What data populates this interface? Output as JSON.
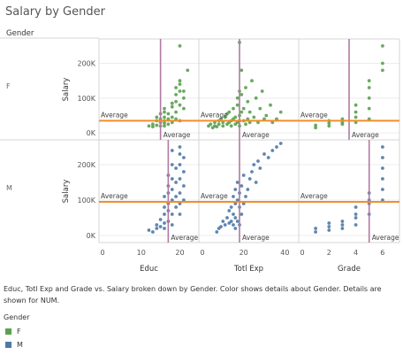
{
  "chart_title": "Salary by Gender",
  "row_header": "Gender",
  "caption": "Educ, Totl Exp and Grade vs. Salary broken down by Gender.  Color shows details about Gender.  Details are shown for NUM.",
  "legend": {
    "title": "Gender",
    "items": [
      {
        "label": "F",
        "color": "#59a14f"
      },
      {
        "label": "M",
        "color": "#4e79a7"
      }
    ]
  },
  "chart_data": {
    "type": "scatter",
    "title": "Salary by Gender",
    "rows": [
      "F",
      "M"
    ],
    "columns": [
      {
        "name": "Educ",
        "xlim": [
          0,
          24
        ],
        "ticks": [
          0,
          10,
          20
        ]
      },
      {
        "name": "Totl Exp",
        "xlim": [
          0,
          45
        ],
        "ticks": [
          0,
          20,
          40
        ]
      },
      {
        "name": "Grade",
        "xlim": [
          0,
          7
        ],
        "ticks": [
          0,
          2,
          4,
          6
        ]
      }
    ],
    "ylabel": "Salary",
    "yticks_label": [
      "0K",
      "100K",
      "200K"
    ],
    "yticks": [
      0,
      100000,
      200000
    ],
    "ylim": [
      -20000,
      270000
    ],
    "reference_line_label": "Average",
    "reference_lines": {
      "salary": {
        "F": 35000,
        "M": 95000
      },
      "Educ": {
        "F": 15.0,
        "M": 17.0
      },
      "Totl Exp": {
        "F": 18.0,
        "M": 18.0
      },
      "Grade": {
        "F": 3.5,
        "M": 5.0
      }
    },
    "colors": {
      "F": "#59a14f",
      "M": "#4e79a7",
      "avg_salary": "#f28e2b",
      "avg_x": "#b07aa1"
    },
    "series": [
      {
        "name": "F",
        "row": "F",
        "points": {
          "Educ": [
            [
              12,
              20000
            ],
            [
              13,
              18000
            ],
            [
              13,
              25000
            ],
            [
              14,
              22000
            ],
            [
              14,
              35000
            ],
            [
              14,
              45000
            ],
            [
              15,
              20000
            ],
            [
              15,
              30000
            ],
            [
              15,
              40000
            ],
            [
              15,
              55000
            ],
            [
              16,
              20000
            ],
            [
              16,
              28000
            ],
            [
              16,
              35000
            ],
            [
              16,
              45000
            ],
            [
              16,
              60000
            ],
            [
              16,
              70000
            ],
            [
              17,
              25000
            ],
            [
              17,
              40000
            ],
            [
              17,
              55000
            ],
            [
              18,
              30000
            ],
            [
              18,
              45000
            ],
            [
              18,
              75000
            ],
            [
              18,
              85000
            ],
            [
              19,
              40000
            ],
            [
              19,
              60000
            ],
            [
              19,
              90000
            ],
            [
              19,
              110000
            ],
            [
              19,
              130000
            ],
            [
              20,
              35000
            ],
            [
              20,
              80000
            ],
            [
              20,
              120000
            ],
            [
              20,
              140000
            ],
            [
              20,
              150000
            ],
            [
              20,
              250000
            ],
            [
              21,
              70000
            ],
            [
              21,
              100000
            ],
            [
              21,
              120000
            ],
            [
              22,
              180000
            ]
          ],
          "Totl Exp": [
            [
              3,
              20000
            ],
            [
              4,
              25000
            ],
            [
              5,
              15000
            ],
            [
              6,
              30000
            ],
            [
              6,
              20000
            ],
            [
              7,
              18000
            ],
            [
              8,
              35000
            ],
            [
              8,
              25000
            ],
            [
              9,
              40000
            ],
            [
              10,
              20000
            ],
            [
              10,
              30000
            ],
            [
              11,
              45000
            ],
            [
              12,
              25000
            ],
            [
              12,
              55000
            ],
            [
              13,
              30000
            ],
            [
              13,
              60000
            ],
            [
              14,
              20000
            ],
            [
              14,
              35000
            ],
            [
              15,
              40000
            ],
            [
              15,
              70000
            ],
            [
              16,
              25000
            ],
            [
              16,
              45000
            ],
            [
              17,
              30000
            ],
            [
              17,
              80000
            ],
            [
              17,
              100000
            ],
            [
              18,
              20000
            ],
            [
              18,
              35000
            ],
            [
              18,
              50000
            ],
            [
              18,
              120000
            ],
            [
              18,
              260000
            ],
            [
              19,
              60000
            ],
            [
              19,
              110000
            ],
            [
              19,
              180000
            ],
            [
              20,
              35000
            ],
            [
              20,
              70000
            ],
            [
              21,
              25000
            ],
            [
              21,
              130000
            ],
            [
              22,
              40000
            ],
            [
              22,
              90000
            ],
            [
              23,
              30000
            ],
            [
              23,
              60000
            ],
            [
              24,
              150000
            ],
            [
              25,
              45000
            ],
            [
              26,
              100000
            ],
            [
              27,
              30000
            ],
            [
              28,
              70000
            ],
            [
              29,
              120000
            ],
            [
              30,
              40000
            ],
            [
              31,
              50000
            ],
            [
              33,
              80000
            ],
            [
              34,
              30000
            ],
            [
              36,
              40000
            ],
            [
              38,
              60000
            ]
          ],
          "Grade": [
            [
              1,
              15000
            ],
            [
              1,
              22000
            ],
            [
              2,
              20000
            ],
            [
              2,
              28000
            ],
            [
              2,
              35000
            ],
            [
              3,
              25000
            ],
            [
              3,
              30000
            ],
            [
              3,
              40000
            ],
            [
              4,
              30000
            ],
            [
              4,
              45000
            ],
            [
              4,
              60000
            ],
            [
              4,
              80000
            ],
            [
              5,
              40000
            ],
            [
              5,
              70000
            ],
            [
              5,
              100000
            ],
            [
              5,
              130000
            ],
            [
              5,
              150000
            ],
            [
              6,
              180000
            ],
            [
              6,
              200000
            ],
            [
              6,
              250000
            ]
          ]
        }
      },
      {
        "name": "M",
        "row": "M",
        "points": {
          "Educ": [
            [
              12,
              15000
            ],
            [
              13,
              10000
            ],
            [
              14,
              20000
            ],
            [
              14,
              30000
            ],
            [
              15,
              25000
            ],
            [
              15,
              45000
            ],
            [
              16,
              20000
            ],
            [
              16,
              35000
            ],
            [
              16,
              60000
            ],
            [
              16,
              80000
            ],
            [
              16,
              110000
            ],
            [
              17,
              40000
            ],
            [
              17,
              70000
            ],
            [
              17,
              90000
            ],
            [
              17,
              120000
            ],
            [
              17,
              140000
            ],
            [
              17,
              170000
            ],
            [
              18,
              30000
            ],
            [
              18,
              60000
            ],
            [
              18,
              100000
            ],
            [
              18,
              130000
            ],
            [
              18,
              160000
            ],
            [
              18,
              200000
            ],
            [
              18,
              240000
            ],
            [
              19,
              80000
            ],
            [
              19,
              110000
            ],
            [
              19,
              150000
            ],
            [
              19,
              190000
            ],
            [
              20,
              60000
            ],
            [
              20,
              90000
            ],
            [
              20,
              120000
            ],
            [
              20,
              160000
            ],
            [
              20,
              200000
            ],
            [
              20,
              230000
            ],
            [
              20,
              250000
            ],
            [
              21,
              100000
            ],
            [
              21,
              140000
            ],
            [
              21,
              180000
            ],
            [
              21,
              220000
            ]
          ],
          "Totl Exp": [
            [
              7,
              10000
            ],
            [
              8,
              20000
            ],
            [
              9,
              25000
            ],
            [
              10,
              40000
            ],
            [
              11,
              30000
            ],
            [
              12,
              50000
            ],
            [
              13,
              35000
            ],
            [
              13,
              70000
            ],
            [
              14,
              40000
            ],
            [
              14,
              80000
            ],
            [
              15,
              30000
            ],
            [
              15,
              60000
            ],
            [
              15,
              110000
            ],
            [
              16,
              20000
            ],
            [
              16,
              50000
            ],
            [
              16,
              90000
            ],
            [
              16,
              130000
            ],
            [
              17,
              40000
            ],
            [
              17,
              100000
            ],
            [
              17,
              150000
            ],
            [
              18,
              30000
            ],
            [
              18,
              80000
            ],
            [
              18,
              120000
            ],
            [
              19,
              60000
            ],
            [
              19,
              140000
            ],
            [
              20,
              90000
            ],
            [
              20,
              170000
            ],
            [
              21,
              110000
            ],
            [
              22,
              130000
            ],
            [
              23,
              160000
            ],
            [
              24,
              180000
            ],
            [
              25,
              200000
            ],
            [
              26,
              150000
            ],
            [
              27,
              210000
            ],
            [
              28,
              190000
            ],
            [
              30,
              230000
            ],
            [
              32,
              220000
            ],
            [
              34,
              240000
            ],
            [
              36,
              250000
            ],
            [
              38,
              260000
            ]
          ],
          "Grade": [
            [
              1,
              10000
            ],
            [
              1,
              20000
            ],
            [
              2,
              15000
            ],
            [
              2,
              25000
            ],
            [
              2,
              35000
            ],
            [
              3,
              20000
            ],
            [
              3,
              30000
            ],
            [
              3,
              40000
            ],
            [
              4,
              30000
            ],
            [
              4,
              50000
            ],
            [
              4,
              60000
            ],
            [
              4,
              80000
            ],
            [
              5,
              60000
            ],
            [
              5,
              90000
            ],
            [
              5,
              100000
            ],
            [
              5,
              120000
            ],
            [
              6,
              100000
            ],
            [
              6,
              130000
            ],
            [
              6,
              160000
            ],
            [
              6,
              190000
            ],
            [
              6,
              220000
            ],
            [
              6,
              250000
            ]
          ]
        }
      }
    ]
  }
}
